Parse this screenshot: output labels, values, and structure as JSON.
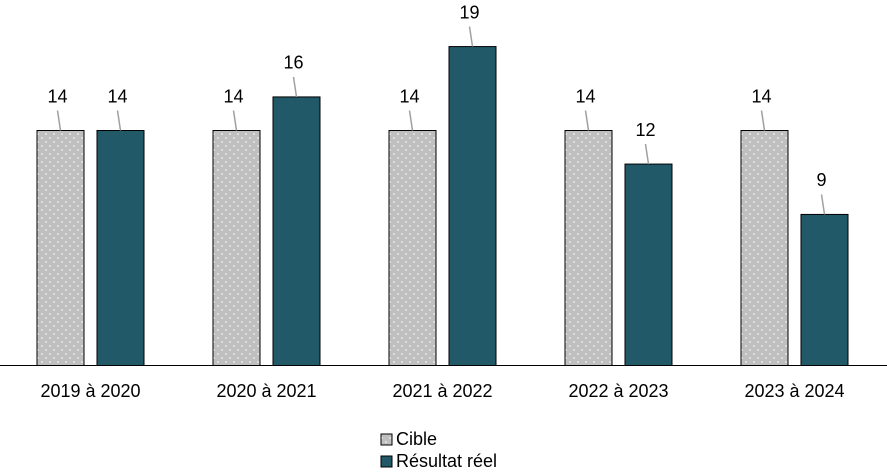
{
  "chart_data": {
    "type": "bar",
    "categories": [
      "2019 à 2020",
      "2020 à 2021",
      "2021 à 2022",
      "2022 à 2023",
      "2023 à 2024"
    ],
    "series": [
      {
        "name": "Cible",
        "color": "#bfbfbf",
        "values": [
          14,
          14,
          14,
          14,
          14
        ]
      },
      {
        "name": "Résultat réel",
        "color": "#215968",
        "values": [
          14,
          16,
          19,
          12,
          9
        ]
      }
    ]
  }
}
